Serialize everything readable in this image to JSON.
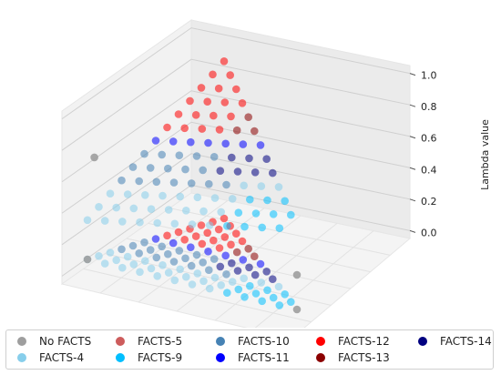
{
  "chart_data": {
    "type": "scatter",
    "projection": "3d",
    "zlabel": "Lambda value",
    "zlim": [
      -0.05,
      1.05
    ],
    "z_ticks": [
      "0.0",
      "0.2",
      "0.4",
      "0.6",
      "0.8",
      "1.0"
    ],
    "grid": true,
    "legend_position": "bottom",
    "series": [
      {
        "name": "No FACTS",
        "color": "#9e9e9e"
      },
      {
        "name": "FACTS-4",
        "color": "#87ceeb"
      },
      {
        "name": "FACTS-5",
        "color": "#cd5c5c"
      },
      {
        "name": "FACTS-9",
        "color": "#00bfff"
      },
      {
        "name": "FACTS-10",
        "color": "#4682b4"
      },
      {
        "name": "FACTS-11",
        "color": "#0000ff"
      },
      {
        "name": "FACTS-12",
        "color": "#ff0000"
      },
      {
        "name": "FACTS-13",
        "color": "#8b0000"
      },
      {
        "name": "FACTS-14",
        "color": "#000080"
      }
    ]
  }
}
